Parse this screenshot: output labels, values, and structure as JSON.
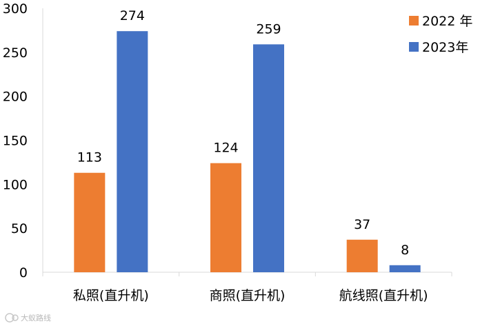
{
  "chart_data": {
    "type": "bar",
    "categories": [
      "私照(直升机)",
      "商照(直升机)",
      "航线照(直升机)"
    ],
    "series": [
      {
        "name": "2022 年",
        "color": "#ED7D31",
        "values": [
          113,
          124,
          37
        ]
      },
      {
        "name": "2023年",
        "color": "#4472C4",
        "values": [
          274,
          259,
          8
        ]
      }
    ],
    "ylim": [
      0,
      300
    ],
    "yticks": [
      "0",
      "50",
      "100",
      "150",
      "200",
      "250",
      "300"
    ],
    "grid": false,
    "legend_position": "top-right"
  },
  "watermark": {
    "text": "大蚁路线",
    "icon": "logo-icon"
  }
}
